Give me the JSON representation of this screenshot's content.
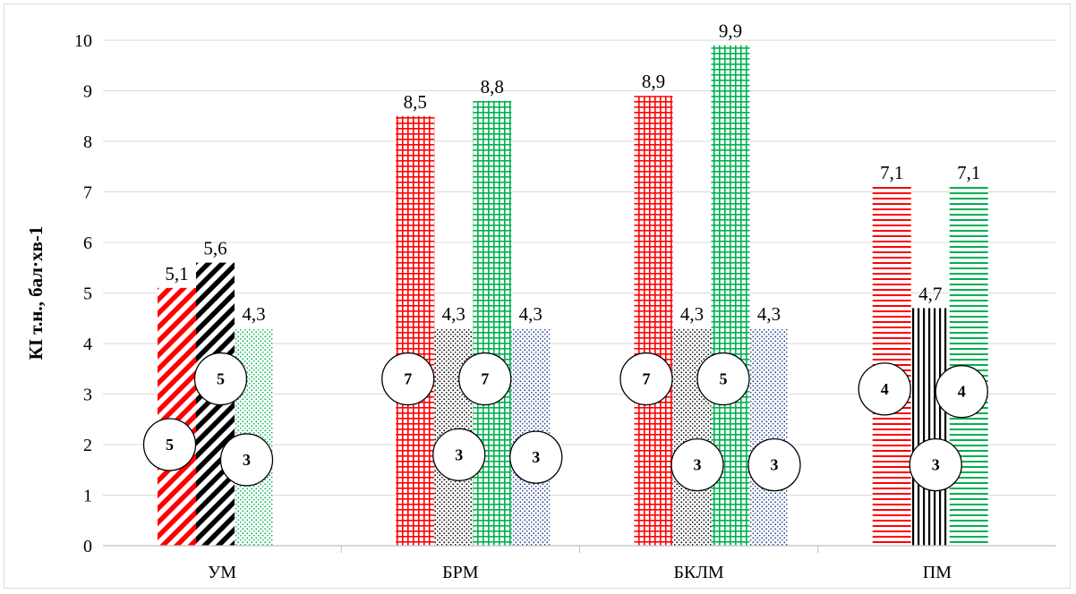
{
  "chart_data": {
    "type": "bar",
    "ylabel": "КІ т.н., бал·хв-1",
    "ylim": [
      0,
      10
    ],
    "yticks": [
      "0",
      "1",
      "2",
      "3",
      "4",
      "5",
      "6",
      "7",
      "8",
      "9",
      "10"
    ],
    "grid": true,
    "categories": [
      {
        "name": "УМ",
        "bars": [
          {
            "value": 5.1,
            "label": "5,1",
            "color": "#ff0000",
            "pattern": "diag",
            "circle": "5",
            "circle_y": 2.0
          },
          {
            "value": 5.6,
            "label": "5,6",
            "color": "#000000",
            "pattern": "diag",
            "circle": "5",
            "circle_y": 3.3
          },
          {
            "value": 4.3,
            "label": "4,3",
            "color": "#00b050",
            "pattern": "dots",
            "circle": "3",
            "circle_y": 1.7
          }
        ]
      },
      {
        "name": "БРМ",
        "bars": [
          {
            "value": 8.5,
            "label": "8,5",
            "color": "#ff0000",
            "pattern": "grid",
            "circle": "7",
            "circle_y": 3.3
          },
          {
            "value": 4.3,
            "label": "4,3",
            "color": "#000000",
            "pattern": "dots",
            "circle": "3",
            "circle_y": 1.8
          },
          {
            "value": 8.8,
            "label": "8,8",
            "color": "#00b050",
            "pattern": "grid",
            "circle": "7",
            "circle_y": 3.3
          },
          {
            "value": 4.3,
            "label": "4,3",
            "color": "#1f3b8c",
            "pattern": "dots",
            "circle": "3",
            "circle_y": 1.75
          }
        ]
      },
      {
        "name": "БКЛМ",
        "bars": [
          {
            "value": 8.9,
            "label": "8,9",
            "color": "#ff0000",
            "pattern": "grid",
            "circle": "7",
            "circle_y": 3.3
          },
          {
            "value": 4.3,
            "label": "4,3",
            "color": "#000000",
            "pattern": "dots",
            "circle": "3",
            "circle_y": 1.6
          },
          {
            "value": 9.9,
            "label": "9,9",
            "color": "#00b050",
            "pattern": "grid",
            "circle": "5",
            "circle_y": 3.3
          },
          {
            "value": 4.3,
            "label": "4,3",
            "color": "#1f3b8c",
            "pattern": "dots",
            "circle": "3",
            "circle_y": 1.6
          }
        ]
      },
      {
        "name": "ПМ",
        "bars": [
          {
            "value": 7.1,
            "label": "7,1",
            "color": "#ff0000",
            "pattern": "hlines",
            "circle": "4",
            "circle_y": 3.1
          },
          {
            "value": 4.7,
            "label": "4,7",
            "color": "#000000",
            "pattern": "vlines",
            "circle": "3",
            "circle_y": 1.6
          },
          {
            "value": 7.1,
            "label": "7,1",
            "color": "#00b050",
            "pattern": "hlines",
            "circle": "4",
            "circle_y": 3.05
          }
        ]
      }
    ]
  }
}
